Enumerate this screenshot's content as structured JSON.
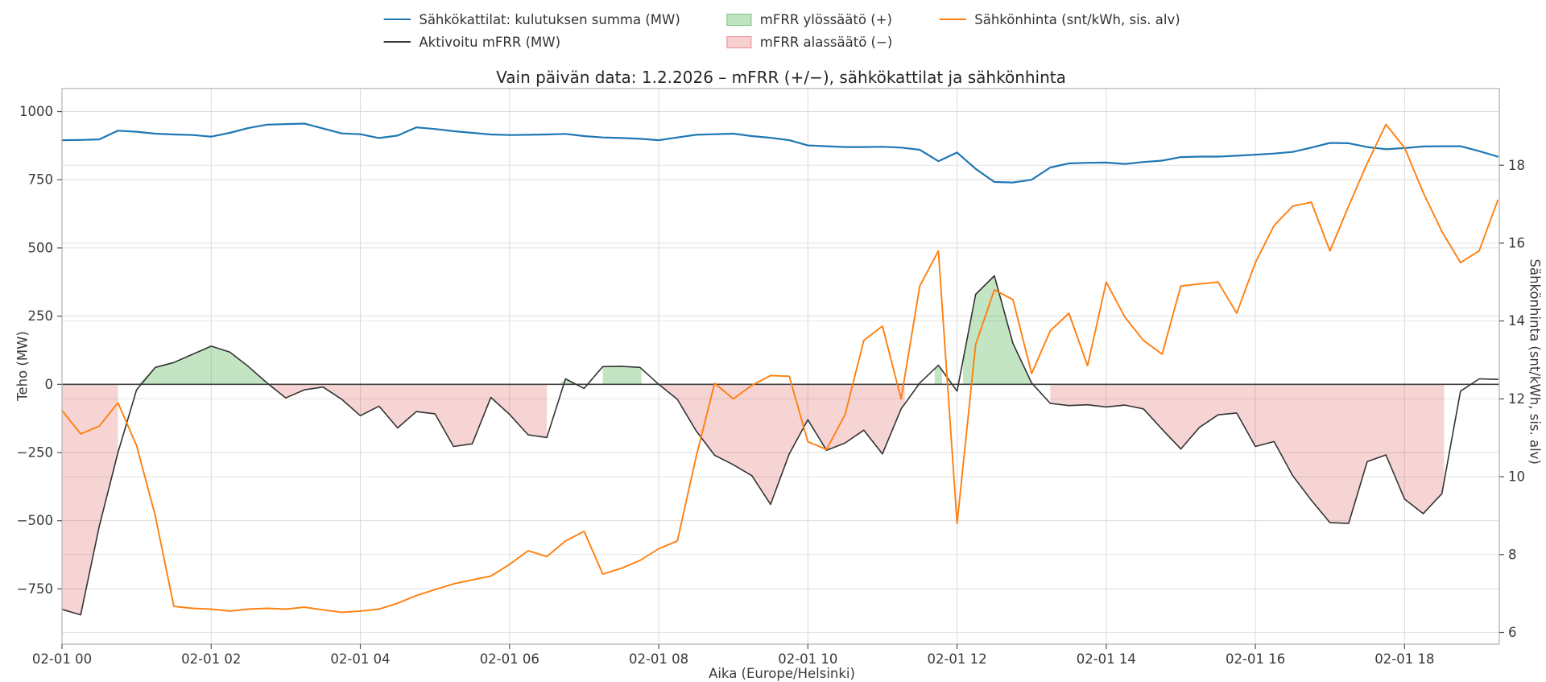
{
  "title": "Vain päivän data: 1.2.2026 – mFRR (+/−), sähkökattilat ja sähkönhinta",
  "legend": {
    "items": [
      {
        "label": "Sähkökattilat: kulutuksen summa (MW)",
        "swatch": "line",
        "color": "#1f77b4"
      },
      {
        "label": "Aktivoitu mFRR (MW)",
        "swatch": "line",
        "color": "#3a3a3a"
      },
      {
        "label": "mFRR ylössäätö (+)",
        "swatch": "patch",
        "color": "rgba(44,160,44,0.30)",
        "border": "rgba(44,160,44,0.45)"
      },
      {
        "label": "mFRR alassäätö (−)",
        "swatch": "patch",
        "color": "rgba(214,39,40,0.22)",
        "border": "rgba(214,39,40,0.40)"
      },
      {
        "label": "Sähkönhinta (snt/kWh, sis. alv)",
        "swatch": "line",
        "color": "#ff7f0e"
      }
    ]
  },
  "axes": {
    "x_label": "Aika (Europe/Helsinki)",
    "y_left_label": "Teho (MW)",
    "y_right_label": "Sähkönhinta (snt/kWh, sis. alv)"
  },
  "chart_data": {
    "type": "line",
    "title": "Vain päivän data: 1.2.2026 – mFRR (+/−), sähkökattilat ja sähkönhinta",
    "xlabel": "Aika (Europe/Helsinki)",
    "ylabel_left": "Teho (MW)",
    "ylabel_right": "Sähkönhinta (snt/kWh, sis. alv)",
    "grid": true,
    "legend_position": "top-center",
    "xlim": [
      0,
      19.27
    ],
    "ylim_left": [
      -952.6,
      1084.3
    ],
    "ylim_right": [
      5.7,
      19.97
    ],
    "x_ticks": [
      {
        "t": 0,
        "label": "02-01 00"
      },
      {
        "t": 2,
        "label": "02-01 02"
      },
      {
        "t": 4,
        "label": "02-01 04"
      },
      {
        "t": 6,
        "label": "02-01 06"
      },
      {
        "t": 8,
        "label": "02-01 08"
      },
      {
        "t": 10,
        "label": "02-01 10"
      },
      {
        "t": 12,
        "label": "02-01 12"
      },
      {
        "t": 14,
        "label": "02-01 14"
      },
      {
        "t": 16,
        "label": "02-01 16"
      },
      {
        "t": 18,
        "label": "02-01 18"
      }
    ],
    "y_left_ticks": [
      {
        "v": 1000,
        "label": "1000"
      },
      {
        "v": 750,
        "label": "750"
      },
      {
        "v": 500,
        "label": "500"
      },
      {
        "v": 250,
        "label": "250"
      },
      {
        "v": 0,
        "label": "0"
      },
      {
        "v": -250,
        "label": "−250"
      },
      {
        "v": -500,
        "label": "−500"
      },
      {
        "v": -750,
        "label": "−750"
      }
    ],
    "y_right_ticks": [
      {
        "v": 18,
        "label": "18"
      },
      {
        "v": 16,
        "label": "16"
      },
      {
        "v": 14,
        "label": "14"
      },
      {
        "v": 12,
        "label": "12"
      },
      {
        "v": 10,
        "label": "10"
      },
      {
        "v": 8,
        "label": "8"
      },
      {
        "v": 6,
        "label": "6"
      }
    ],
    "x_hours": [
      0,
      0.25,
      0.5,
      0.75,
      1,
      1.25,
      1.5,
      1.75,
      2,
      2.25,
      2.5,
      2.75,
      3,
      3.25,
      3.5,
      3.75,
      4,
      4.25,
      4.5,
      4.75,
      5,
      5.25,
      5.5,
      5.75,
      6,
      6.25,
      6.5,
      6.75,
      7,
      7.25,
      7.5,
      7.75,
      8,
      8.25,
      8.5,
      8.75,
      9,
      9.25,
      9.5,
      9.75,
      10,
      10.25,
      10.5,
      10.75,
      11,
      11.25,
      11.5,
      11.75,
      12,
      12.25,
      12.5,
      12.75,
      13,
      13.25,
      13.5,
      13.75,
      14,
      14.25,
      14.5,
      14.75,
      15,
      15.25,
      15.5,
      15.75,
      16,
      16.25,
      16.5,
      16.75,
      17,
      17.25,
      17.5,
      17.75,
      18,
      18.25,
      18.5,
      18.75,
      19,
      19.25
    ],
    "series": [
      {
        "name": "Sähkökattilat: kulutuksen summa (MW)",
        "axis": "left",
        "color": "#1f77b4",
        "width": 2.2,
        "values": [
          895,
          896,
          898,
          930,
          926,
          919,
          916,
          914,
          908,
          922,
          940,
          952,
          954,
          956,
          938,
          920,
          917,
          903,
          912,
          942,
          936,
          928,
          922,
          916,
          914,
          915,
          916,
          918,
          910,
          905,
          903,
          900,
          895,
          905,
          915,
          917,
          919,
          910,
          904,
          895,
          876,
          873,
          870,
          870,
          871,
          868,
          860,
          818,
          850,
          790,
          742,
          740,
          750,
          795,
          810,
          812,
          813,
          808,
          815,
          820,
          833,
          835,
          835,
          838,
          842,
          846,
          852,
          868,
          885,
          884,
          870,
          862,
          866,
          872,
          873,
          873,
          855,
          835
        ]
      },
      {
        "name": "Aktivoitu mFRR (MW)",
        "axis": "left",
        "color": "#333333",
        "width": 1.6,
        "values": [
          -825,
          -845,
          -520,
          -250,
          -20,
          62,
          80,
          110,
          140,
          118,
          65,
          5,
          -50,
          -20,
          -10,
          -55,
          -115,
          -80,
          -160,
          -100,
          -108,
          -228,
          -218,
          -48,
          -110,
          -185,
          -195,
          20,
          -15,
          65,
          66,
          62,
          0,
          -55,
          -170,
          -260,
          -295,
          -335,
          -440,
          -255,
          -130,
          -242,
          -215,
          -168,
          -255,
          -90,
          5,
          70,
          -25,
          330,
          398,
          150,
          5,
          -70,
          -78,
          -75,
          -83,
          -76,
          -90,
          -165,
          -237,
          -158,
          -112,
          -105,
          -228,
          -210,
          -335,
          -425,
          -507,
          -510,
          -283,
          -259,
          -421,
          -474,
          -401,
          -25,
          20,
          18
        ]
      },
      {
        "name": "Sähkönhinta (snt/kWh, sis. alv)",
        "axis": "right",
        "color": "#ff7f0e",
        "width": 1.9,
        "values": [
          11.7,
          11.1,
          11.3,
          11.9,
          10.8,
          9.0,
          6.67,
          6.62,
          6.6,
          6.55,
          6.6,
          6.62,
          6.6,
          6.65,
          6.58,
          6.52,
          6.55,
          6.6,
          6.75,
          6.95,
          7.1,
          7.25,
          7.35,
          7.45,
          7.75,
          8.1,
          7.95,
          8.35,
          8.6,
          7.5,
          7.65,
          7.85,
          8.15,
          8.35,
          10.5,
          12.4,
          12.0,
          12.35,
          12.6,
          12.58,
          10.9,
          10.7,
          11.6,
          13.5,
          13.87,
          12.0,
          14.9,
          15.8,
          8.8,
          13.4,
          14.8,
          14.55,
          12.65,
          13.75,
          14.2,
          12.85,
          15.0,
          14.1,
          13.5,
          13.15,
          14.9,
          14.95,
          15.0,
          14.2,
          15.5,
          16.45,
          16.95,
          17.05,
          15.8,
          16.95,
          18.05,
          19.05,
          18.45,
          17.3,
          16.3,
          15.5,
          15.8,
          17.1
        ]
      }
    ],
    "fills": {
      "up_color": "rgba(44,160,44,0.28)",
      "down_color": "rgba(214,39,40,0.20)",
      "up_blocks": [
        [
          1.02,
          2.72
        ],
        [
          6.67,
          6.9
        ],
        [
          7.25,
          7.77
        ],
        [
          11.7,
          11.8
        ],
        [
          12.08,
          13.02
        ]
      ],
      "down_blocks": [
        [
          0,
          0.75
        ],
        [
          2.75,
          6.5
        ],
        [
          8.0,
          11.3
        ],
        [
          13.25,
          18.53
        ]
      ]
    },
    "zero_line_color": "#404040",
    "grid_color": "#dcdcdc",
    "grid_color_right": "#e4e4e4",
    "spine_color": "#bcbcbc"
  }
}
